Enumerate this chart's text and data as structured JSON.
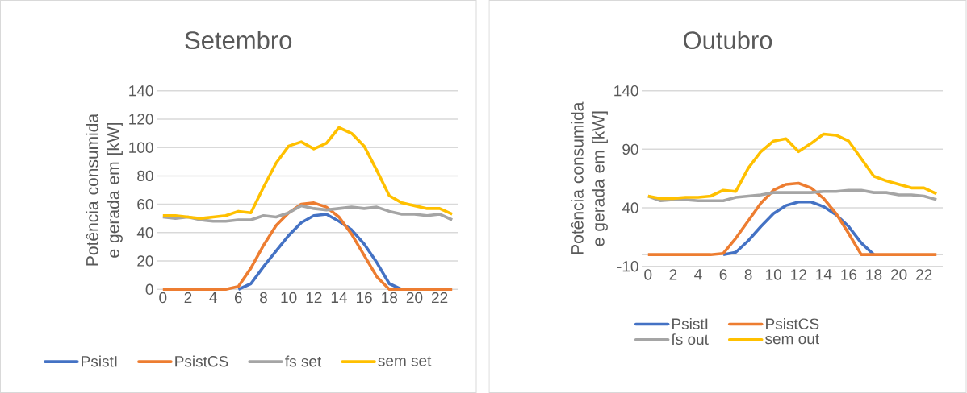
{
  "chart_data": [
    {
      "type": "line",
      "title": "Setembro",
      "ylabel": "Potência consumida e gerada em [kW]",
      "x": [
        0,
        1,
        2,
        3,
        4,
        5,
        6,
        7,
        8,
        9,
        10,
        11,
        12,
        13,
        14,
        15,
        16,
        17,
        18,
        19,
        20,
        21,
        22,
        23
      ],
      "xlim": [
        -0.5,
        23.5
      ],
      "xticks": [
        0,
        2,
        4,
        6,
        8,
        10,
        12,
        14,
        16,
        18,
        20,
        22
      ],
      "ylim": [
        0,
        140
      ],
      "yticks": [
        0,
        20,
        40,
        60,
        80,
        100,
        120,
        140
      ],
      "grid": "y",
      "legend": "bottom",
      "series": [
        {
          "name": "PsistI",
          "color": "#4472c4",
          "values": [
            null,
            null,
            null,
            null,
            null,
            null,
            0,
            4,
            16,
            27,
            38,
            47,
            52,
            53,
            48,
            42,
            32,
            19,
            4,
            0,
            null,
            null,
            null,
            null
          ]
        },
        {
          "name": "PsistCS",
          "color": "#ed7d31",
          "values": [
            0,
            0,
            0,
            0,
            0,
            0,
            2,
            15,
            31,
            45,
            54,
            60,
            61,
            58,
            51,
            39,
            24,
            9,
            0,
            0,
            0,
            0,
            0,
            0
          ]
        },
        {
          "name": "fs set",
          "color": "#a5a5a5",
          "values": [
            51,
            50,
            51,
            49,
            48,
            48,
            49,
            49,
            52,
            51,
            54,
            59,
            57,
            56,
            57,
            58,
            57,
            58,
            55,
            53,
            53,
            52,
            53,
            49
          ]
        },
        {
          "name": "sem set",
          "color": "#ffc000",
          "values": [
            52,
            52,
            51,
            50,
            51,
            52,
            55,
            54,
            72,
            89,
            101,
            104,
            99,
            103,
            114,
            110,
            101,
            84,
            66,
            61,
            59,
            57,
            57,
            53
          ]
        }
      ]
    },
    {
      "type": "line",
      "title": "Outubro",
      "ylabel": "Potência consumida e gerada em [kW]",
      "x": [
        0,
        1,
        2,
        3,
        4,
        5,
        6,
        7,
        8,
        9,
        10,
        11,
        12,
        13,
        14,
        15,
        16,
        17,
        18,
        19,
        20,
        21,
        22,
        23
      ],
      "xlim": [
        -0.5,
        23.5
      ],
      "xticks": [
        0,
        2,
        4,
        6,
        8,
        10,
        12,
        14,
        16,
        18,
        20,
        22
      ],
      "ylim": [
        -10,
        140
      ],
      "yticks": [
        -10,
        40,
        90,
        140
      ],
      "grid": "y",
      "legend": "bottom",
      "ref_lines": [
        {
          "axis": "y",
          "value": 0,
          "color": "#d9d9d9"
        }
      ],
      "series": [
        {
          "name": "PsistI",
          "color": "#4472c4",
          "values": [
            null,
            null,
            null,
            null,
            null,
            null,
            0,
            2,
            12,
            24,
            35,
            42,
            45,
            45,
            41,
            34,
            24,
            10,
            0,
            null,
            null,
            null,
            null,
            null
          ]
        },
        {
          "name": "PsistCS",
          "color": "#ed7d31",
          "values": [
            0,
            0,
            0,
            0,
            0,
            0,
            1,
            14,
            29,
            44,
            55,
            60,
            61,
            57,
            48,
            35,
            18,
            0,
            0,
            0,
            0,
            0,
            0,
            0
          ]
        },
        {
          "name": "fs out",
          "color": "#a5a5a5",
          "values": [
            50,
            46,
            47,
            47,
            46,
            46,
            46,
            49,
            50,
            51,
            53,
            53,
            53,
            53,
            54,
            54,
            55,
            55,
            53,
            53,
            51,
            51,
            50,
            47
          ]
        },
        {
          "name": "sem out",
          "color": "#ffc000",
          "values": [
            50,
            48,
            48,
            49,
            49,
            50,
            55,
            54,
            74,
            88,
            97,
            99,
            88,
            95,
            103,
            102,
            97,
            82,
            67,
            63,
            60,
            57,
            57,
            52
          ]
        }
      ]
    }
  ]
}
